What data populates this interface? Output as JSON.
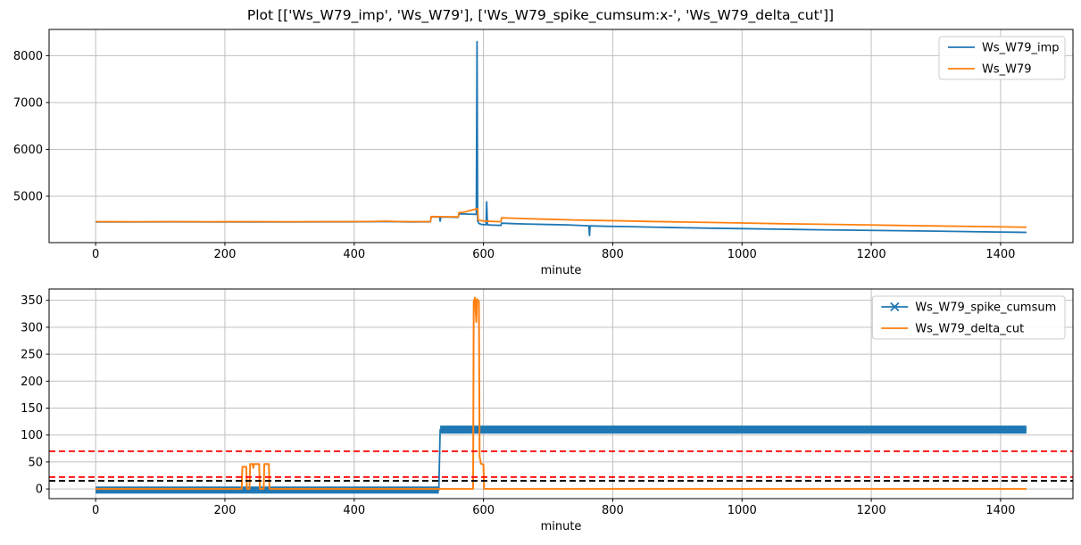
{
  "title": "Plot [['Ws_W79_imp', 'Ws_W79'], ['Ws_W79_spike_cumsum:x-', 'Ws_W79_delta_cut']]",
  "colors": {
    "blue": "#1f77b4",
    "orange": "#ff7f0e",
    "red_threshold": "#ff0000",
    "black_threshold": "#000000",
    "grid": "#c0c0c0",
    "spine": "#000000",
    "legend_border": "#cccccc",
    "background": "#ffffff"
  },
  "chart_data": [
    {
      "type": "line",
      "xlabel": "minute",
      "ylabel": "",
      "xlim": [
        -72,
        1512
      ],
      "ylim": [
        4010,
        8560
      ],
      "xticks": [
        0,
        200,
        400,
        600,
        800,
        1000,
        1200,
        1400
      ],
      "yticks": [
        5000,
        6000,
        7000,
        8000
      ],
      "grid": true,
      "legend_position": "upper right",
      "series": [
        {
          "name": "Ws_W79_imp",
          "color": "#1f77b4",
          "marker": "none",
          "linewidth": 1.8,
          "x": [
            0,
            60,
            120,
            180,
            240,
            300,
            360,
            420,
            450,
            470,
            490,
            505,
            518,
            519,
            531,
            532,
            533,
            534,
            545,
            560,
            561,
            562,
            574,
            588,
            589,
            590,
            591,
            593,
            597,
            603,
            604,
            605,
            606,
            612,
            620,
            627,
            628,
            645,
            665,
            700,
            730,
            762,
            763,
            764,
            765,
            790,
            820,
            860,
            900,
            950,
            1000,
            1060,
            1120,
            1180,
            1240,
            1300,
            1370,
            1440
          ],
          "y": [
            4452,
            4450,
            4453,
            4450,
            4452,
            4450,
            4453,
            4455,
            4462,
            4455,
            4452,
            4453,
            4453,
            4560,
            4558,
            4556,
            4470,
            4556,
            4554,
            4551,
            4551,
            4625,
            4620,
            4614,
            4612,
            8300,
            4470,
            4420,
            4398,
            4390,
            4390,
            4880,
            4390,
            4385,
            4382,
            4378,
            4425,
            4415,
            4408,
            4396,
            4388,
            4370,
            4370,
            4160,
            4368,
            4358,
            4352,
            4342,
            4330,
            4318,
            4308,
            4295,
            4285,
            4275,
            4265,
            4255,
            4240,
            4228
          ]
        },
        {
          "name": "Ws_W79",
          "color": "#ff7f0e",
          "marker": "none",
          "linewidth": 1.8,
          "x": [
            0,
            60,
            120,
            180,
            240,
            300,
            360,
            420,
            450,
            470,
            490,
            505,
            518,
            519,
            540,
            560,
            561,
            562,
            570,
            578,
            586,
            590,
            591,
            592,
            600,
            615,
            626,
            627,
            628,
            645,
            665,
            700,
            740,
            780,
            820,
            860,
            900,
            950,
            1000,
            1060,
            1120,
            1180,
            1240,
            1300,
            1370,
            1440
          ],
          "y": [
            4458,
            4456,
            4458,
            4456,
            4458,
            4456,
            4458,
            4460,
            4466,
            4460,
            4458,
            4458,
            4458,
            4565,
            4562,
            4560,
            4560,
            4650,
            4660,
            4690,
            4720,
            4735,
            4730,
            4485,
            4472,
            4462,
            4458,
            4458,
            4540,
            4532,
            4522,
            4508,
            4494,
            4482,
            4472,
            4462,
            4452,
            4440,
            4428,
            4414,
            4402,
            4390,
            4378,
            4366,
            4352,
            4340
          ]
        }
      ],
      "hlines": []
    },
    {
      "type": "line",
      "xlabel": "minute",
      "ylabel": "",
      "xlim": [
        -72,
        1512
      ],
      "ylim": [
        -18,
        371
      ],
      "xticks": [
        0,
        200,
        400,
        600,
        800,
        1000,
        1200,
        1400
      ],
      "yticks": [
        0,
        50,
        100,
        150,
        200,
        250,
        300,
        350
      ],
      "grid": true,
      "legend_position": "upper right",
      "series": [
        {
          "name": "Ws_W79_spike_cumsum",
          "color": "#1f77b4",
          "marker": "x",
          "linewidth": 1.8,
          "x": [
            0,
            531,
            533,
            1440
          ],
          "y": [
            -2,
            -2,
            110,
            110
          ],
          "bands": [
            {
              "x1": 0,
              "x2": 531,
              "y": -2,
              "width": 8
            },
            {
              "x1": 533,
              "x2": 1440,
              "y": 110,
              "width": 9
            }
          ]
        },
        {
          "name": "Ws_W79_delta_cut",
          "color": "#ff7f0e",
          "marker": "none",
          "linewidth": 2,
          "x": [
            0,
            226,
            227,
            233,
            234,
            238,
            239,
            243,
            244,
            245,
            253,
            254,
            260,
            261,
            268,
            269,
            584,
            585,
            587,
            588,
            589,
            590,
            593,
            594,
            596,
            600,
            601,
            1440
          ],
          "y": [
            0,
            0,
            41,
            41,
            0,
            0,
            46,
            46,
            39,
            46,
            46,
            0,
            0,
            46,
            46,
            0,
            0,
            348,
            355,
            330,
            310,
            352,
            348,
            60,
            47,
            45,
            0,
            0
          ]
        }
      ],
      "hlines": [
        {
          "y": 70,
          "color": "#ff0000",
          "style": "dashed"
        },
        {
          "y": 22,
          "color": "#ff0000",
          "style": "dashed"
        },
        {
          "y": 15,
          "color": "#000000",
          "style": "dashed"
        }
      ]
    }
  ]
}
